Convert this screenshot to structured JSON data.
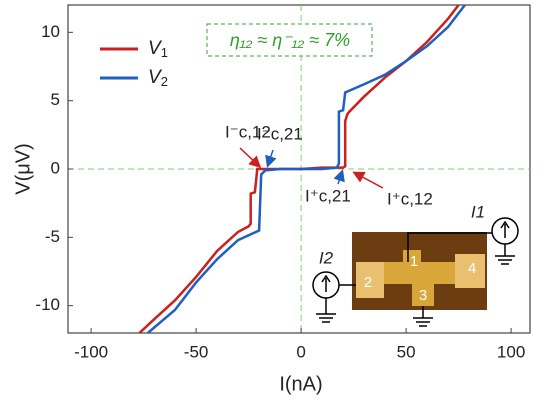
{
  "chart_data": {
    "type": "line",
    "xlabel": "I(nA)",
    "ylabel": "V(μV)",
    "xlim": [
      -111,
      109
    ],
    "ylim": [
      -12,
      12
    ],
    "xticks": [
      -100,
      -50,
      0,
      50,
      100
    ],
    "yticks": [
      -10,
      -5,
      0,
      5,
      10
    ],
    "zero_lines": true,
    "series": [
      {
        "name": "V1",
        "color": "#cc1f1f",
        "x": [
          -77,
          -70,
          -60,
          -50,
          -40,
          -30,
          -25,
          -24,
          -24,
          -22,
          -21,
          -21,
          -10,
          0,
          10,
          20,
          21,
          21,
          22,
          23,
          30,
          40,
          50,
          60,
          70,
          75
        ],
        "values": [
          -12,
          -11,
          -9.6,
          -7.9,
          -6,
          -4.6,
          -4.2,
          -4,
          -1.8,
          -1.7,
          -0.2,
          0,
          0,
          0,
          0.1,
          0.1,
          0.2,
          3.5,
          4,
          4.2,
          5.3,
          6.7,
          7.9,
          9.3,
          11,
          12
        ]
      },
      {
        "name": "V2",
        "color": "#1f5fbf",
        "x": [
          -73,
          -60,
          -50,
          -40,
          -30,
          -20,
          -19,
          -17,
          -10,
          0,
          10,
          17,
          18,
          18,
          20,
          21,
          30,
          40,
          50,
          60,
          70,
          78
        ],
        "values": [
          -12,
          -10.3,
          -8.3,
          -6.6,
          -5.2,
          -4.5,
          -0.4,
          -0.1,
          0,
          0,
          0,
          0.1,
          0.4,
          4.2,
          4.3,
          5.6,
          6.2,
          6.9,
          7.9,
          9,
          10.4,
          12
        ]
      }
    ],
    "annotations": [
      "η₁₂ ≈ η⁻₁₂ ≈ 7%",
      "I⁻c,12",
      "I⁻c,21",
      "I⁺c,21",
      "I⁺c,12"
    ],
    "inset": {
      "terminals": [
        "1",
        "2",
        "3",
        "4"
      ],
      "sources": [
        "I1",
        "I2"
      ]
    }
  }
}
